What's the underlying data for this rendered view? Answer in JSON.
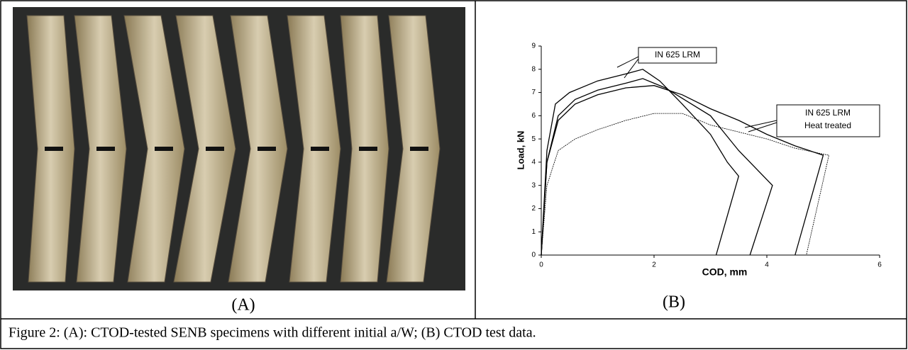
{
  "figure": {
    "panel_a_label": "(A)",
    "panel_b_label": "(B)",
    "caption": "Figure 2: (A): CTOD-tested SENB specimens with different initial a/W; (B) CTOD test data."
  },
  "chart_data": {
    "type": "line",
    "xlabel": "COD, mm",
    "ylabel": "Load, kN",
    "xlim": [
      0,
      6
    ],
    "ylim": [
      0,
      9
    ],
    "xticks": [
      0,
      2,
      4,
      6
    ],
    "yticks": [
      0,
      1,
      2,
      3,
      4,
      5,
      6,
      7,
      8,
      9
    ],
    "annotations": [
      {
        "lines": [
          "IN 625 LRM"
        ]
      },
      {
        "lines": [
          "IN 625 LRM",
          "Heat treated"
        ]
      }
    ],
    "series": [
      {
        "color": "#000000",
        "x": [
          0,
          0.1,
          0.25,
          0.5,
          1,
          1.5,
          1.8,
          2.1,
          2.5,
          3.0,
          3.3,
          3.5,
          3.1
        ],
        "values": [
          0,
          4.5,
          6.5,
          7,
          7.5,
          7.8,
          8,
          7.5,
          6.5,
          5.2,
          4,
          3.4,
          0
        ]
      },
      {
        "color": "#000000",
        "x": [
          0,
          0.1,
          0.3,
          0.6,
          1,
          1.5,
          1.8,
          2.2,
          2.6,
          3,
          3.5,
          4.1,
          3.7
        ],
        "values": [
          0,
          4,
          6,
          6.7,
          7.1,
          7.4,
          7.6,
          7.2,
          6.6,
          6,
          4.5,
          3,
          0
        ]
      },
      {
        "color": "#000000",
        "x": [
          0,
          0.1,
          0.3,
          0.6,
          1,
          1.5,
          2,
          2.5,
          3,
          3.5,
          4,
          4.5,
          5.0,
          4.5
        ],
        "values": [
          0,
          4,
          5.8,
          6.5,
          6.9,
          7.2,
          7.3,
          6.9,
          6.3,
          5.8,
          5.2,
          4.7,
          4.3,
          0
        ]
      },
      {
        "color": "#000000",
        "x": [
          0,
          0.1,
          0.3,
          0.6,
          1,
          1.5,
          2,
          2.5,
          3,
          3.5,
          4,
          4.5,
          5.1,
          4.7
        ],
        "values": [
          0,
          3,
          4.5,
          5,
          5.4,
          5.8,
          6.1,
          6.1,
          5.6,
          5.3,
          5,
          4.6,
          4.3,
          0
        ]
      }
    ]
  }
}
